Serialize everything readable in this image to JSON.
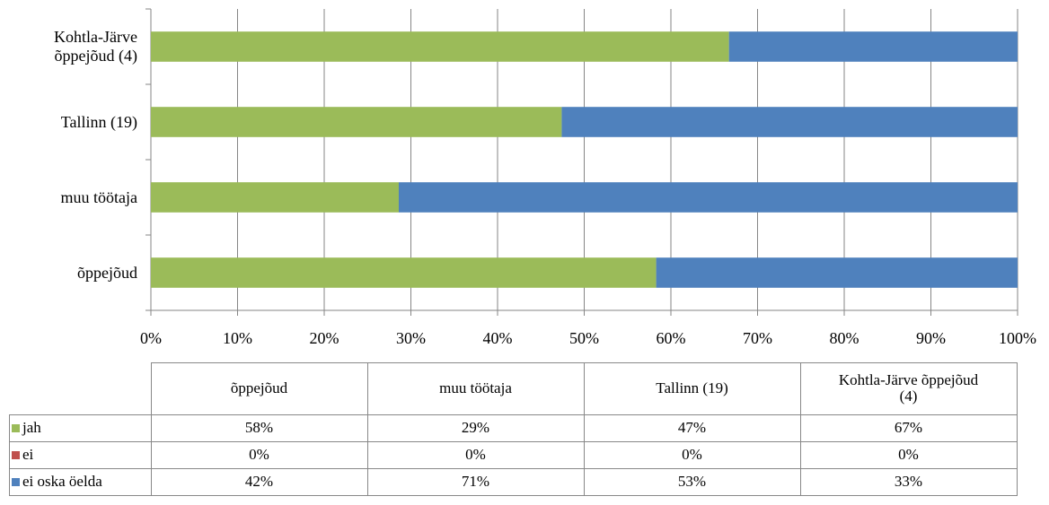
{
  "chart_data": {
    "type": "bar",
    "orientation": "horizontal",
    "stacked": true,
    "categories": [
      "õppejõud",
      "muu töötaja",
      "Tallinn (19)",
      "Kohtla-Järve õppejõud (4)"
    ],
    "series": [
      {
        "name": "jah",
        "color": "#9bbb59",
        "values": [
          58.3,
          28.6,
          47.4,
          66.7
        ],
        "value_labels": [
          "58%",
          "29%",
          "47%",
          "67%"
        ]
      },
      {
        "name": "ei",
        "color": "#c0504d",
        "values": [
          0,
          0,
          0,
          0
        ],
        "value_labels": [
          "0%",
          "0%",
          "0%",
          "0%"
        ]
      },
      {
        "name": "ei oska öelda",
        "color": "#4f81bd",
        "values": [
          41.7,
          71.4,
          52.6,
          33.3
        ],
        "value_labels": [
          "42%",
          "71%",
          "53%",
          "33%"
        ]
      }
    ],
    "xlim": [
      0,
      100
    ],
    "xticks": [
      {
        "value": 0,
        "label": "0%"
      },
      {
        "value": 10,
        "label": "10%"
      },
      {
        "value": 20,
        "label": "20%"
      },
      {
        "value": 30,
        "label": "30%"
      },
      {
        "value": 40,
        "label": "40%"
      },
      {
        "value": 50,
        "label": "50%"
      },
      {
        "value": 60,
        "label": "60%"
      },
      {
        "value": 70,
        "label": "70%"
      },
      {
        "value": 80,
        "label": "80%"
      },
      {
        "value": 90,
        "label": "90%"
      },
      {
        "value": 100,
        "label": "100%"
      }
    ],
    "grid": true,
    "data_table": true
  }
}
